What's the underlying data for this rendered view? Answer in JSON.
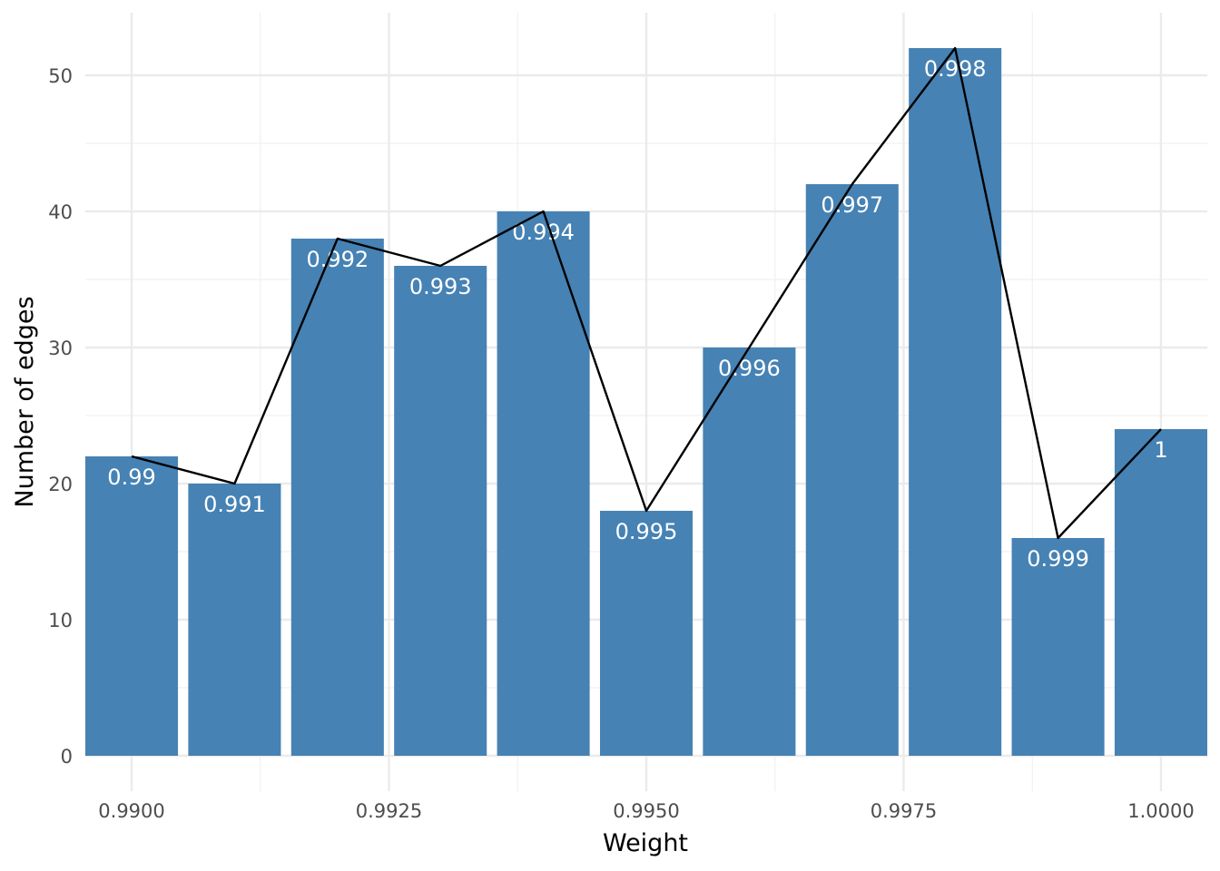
{
  "chart_data": {
    "type": "bar",
    "xlabel": "Weight",
    "ylabel": "Number of edges",
    "xlim": [
      0.98955,
      1.00045
    ],
    "ylim": [
      -2.6,
      54.6
    ],
    "x_ticks": [
      0.99,
      0.9925,
      0.995,
      0.9975,
      1.0
    ],
    "x_tick_labels": [
      "0.9900",
      "0.9925",
      "0.9950",
      "0.9975",
      "1.0000"
    ],
    "y_ticks": [
      0,
      10,
      20,
      30,
      40,
      50
    ],
    "y_tick_labels": [
      "0",
      "10",
      "20",
      "30",
      "40",
      "50"
    ],
    "bar_color": "#4682B4",
    "line_color": "#000000",
    "grid": true,
    "series": [
      {
        "x": [
          0.99,
          0.991,
          0.992,
          0.993,
          0.994,
          0.995,
          0.996,
          0.997,
          0.998,
          0.999,
          1.0
        ],
        "values": [
          22,
          20,
          38,
          36,
          40,
          18,
          30,
          42,
          52,
          16,
          24
        ],
        "labels": [
          "0.99",
          "0.991",
          "0.992",
          "0.993",
          "0.994",
          "0.995",
          "0.996",
          "0.997",
          "0.998",
          "0.999",
          "1"
        ]
      }
    ]
  }
}
